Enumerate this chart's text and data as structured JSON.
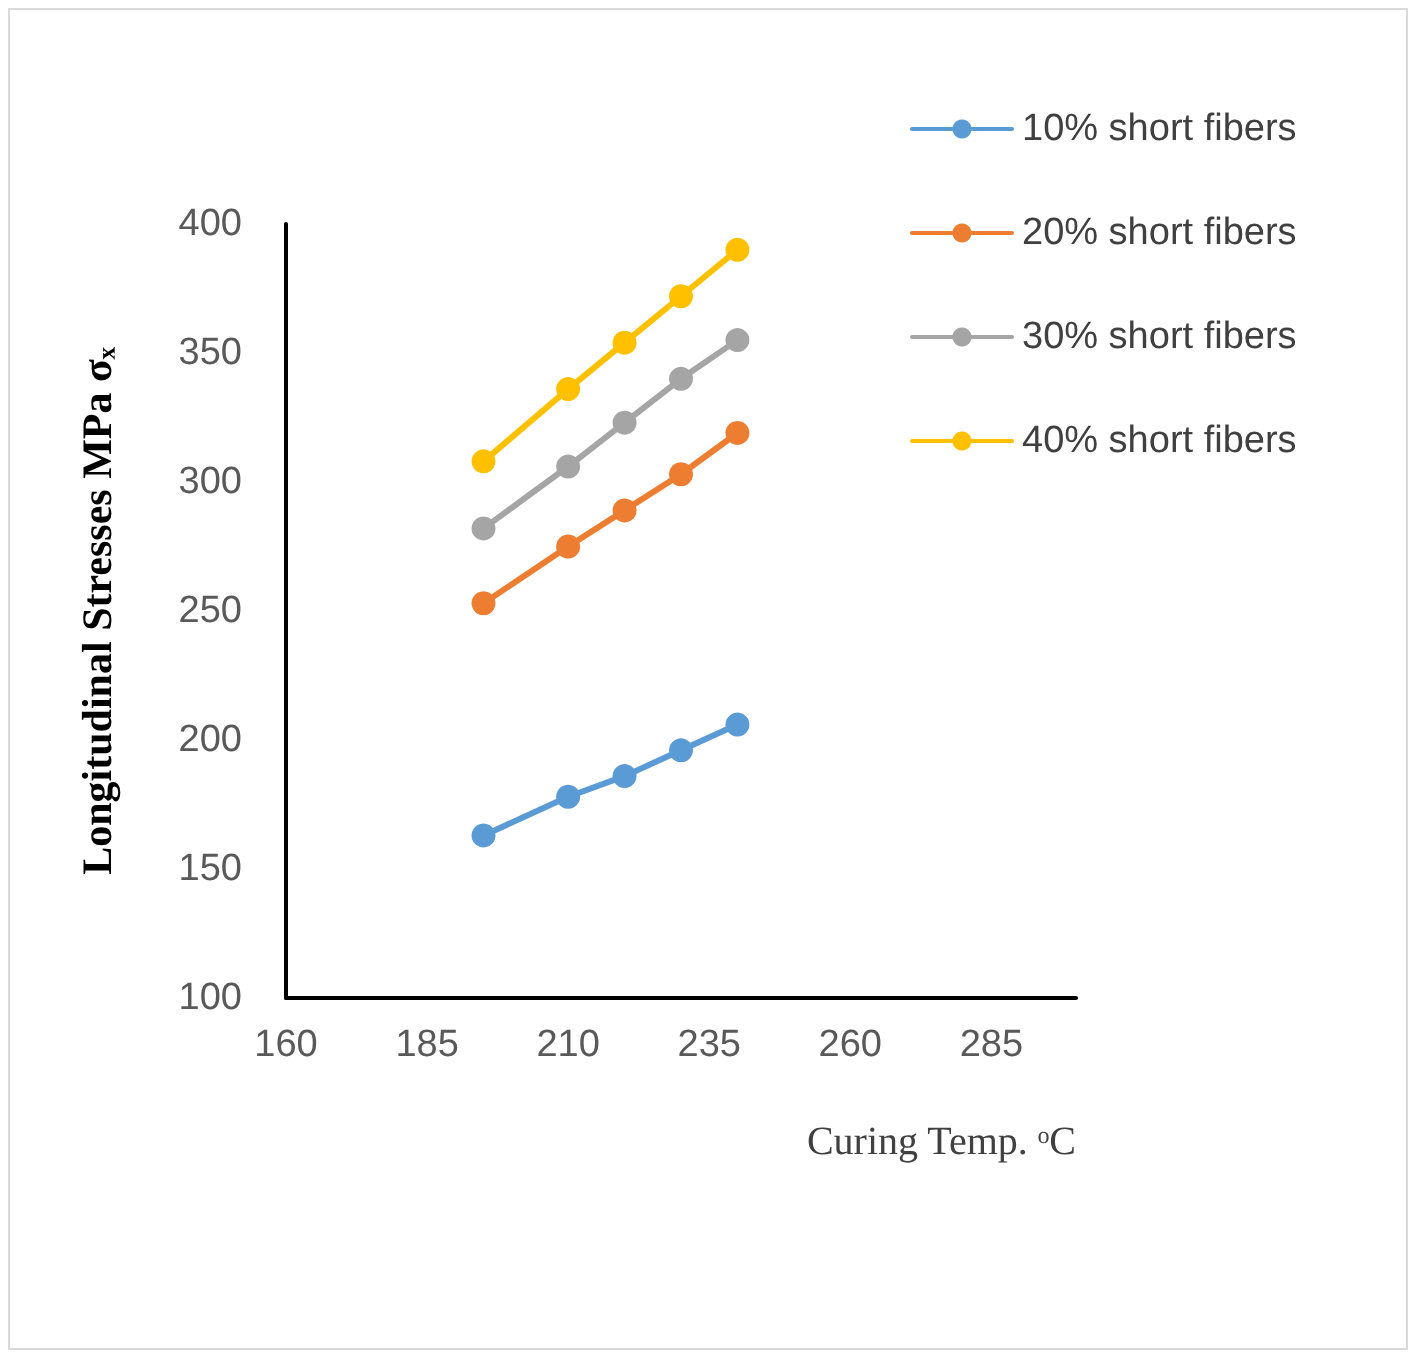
{
  "chart_data": {
    "type": "line",
    "xlabel": "Curing Temp. ᵒC",
    "ylabel": "Longitudinal Stresses MPa σₓ",
    "x": [
      195,
      210,
      220,
      230,
      240
    ],
    "xlim": [
      160,
      300
    ],
    "xticks": [
      160,
      185,
      210,
      235,
      260,
      285
    ],
    "ylim": [
      100,
      400
    ],
    "yticks": [
      100,
      150,
      200,
      250,
      300,
      350,
      400
    ],
    "grid": false,
    "legend": "top right",
    "marker": "circle",
    "line_style": "solid",
    "series": [
      {
        "name": "10% short fibers",
        "color": "#5b9bd5",
        "values": [
          163,
          178,
          186,
          196,
          206
        ]
      },
      {
        "name": "20% short fibers",
        "color": "#ed7d31",
        "values": [
          253,
          275,
          289,
          303,
          319
        ]
      },
      {
        "name": "30% short fibers",
        "color": "#a5a5a5",
        "values": [
          282,
          306,
          323,
          340,
          355
        ]
      },
      {
        "name": "40% short fibers",
        "color": "#ffc000",
        "values": [
          308,
          336,
          354,
          372,
          390
        ]
      }
    ]
  }
}
